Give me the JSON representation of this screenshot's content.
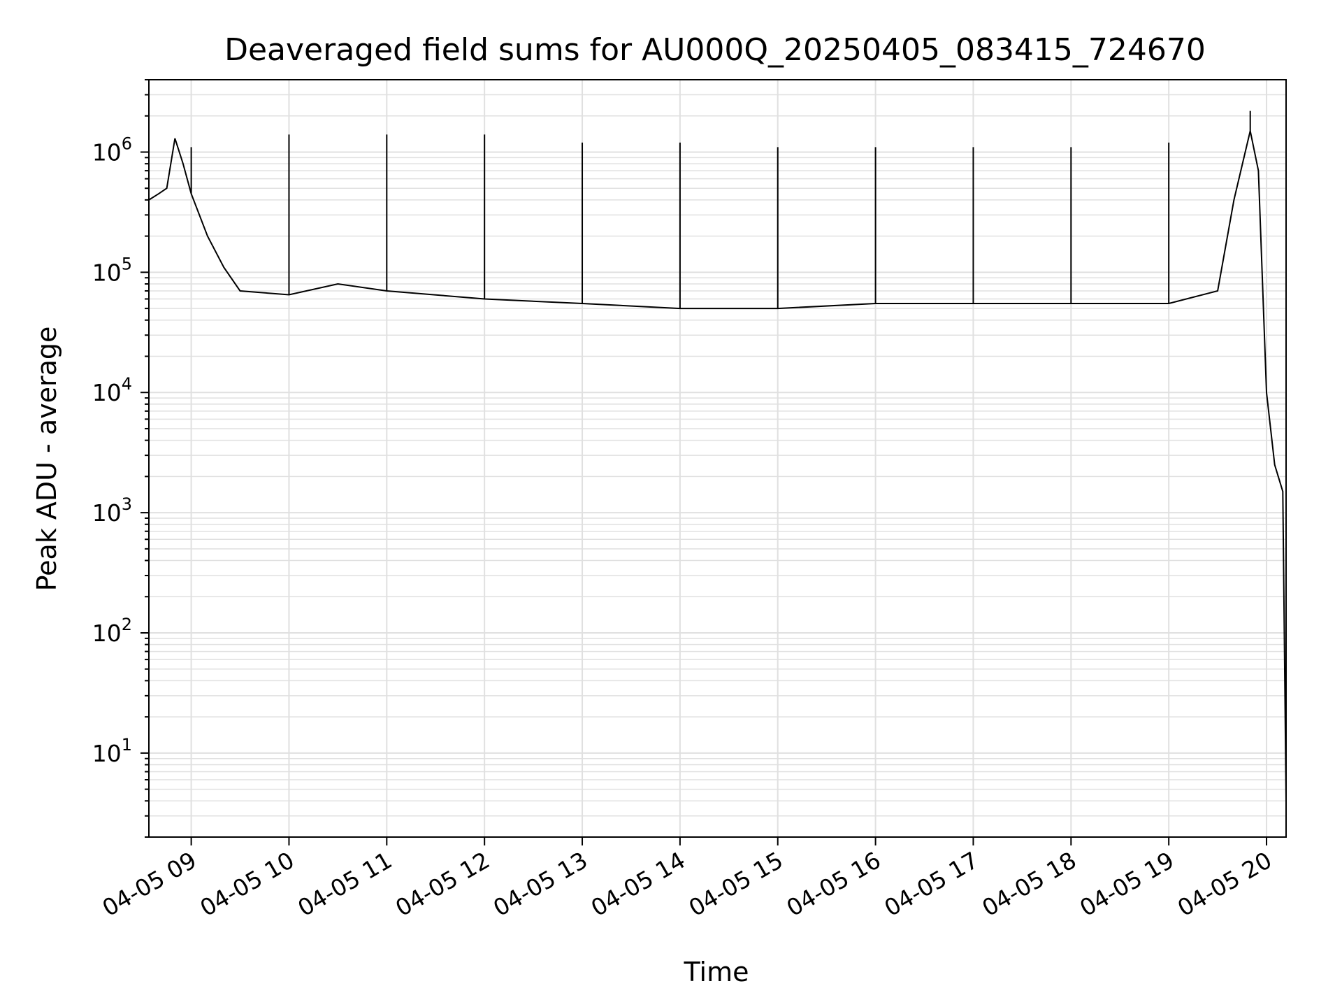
{
  "chart_data": {
    "type": "line",
    "title": "Deaveraged field sums for AU000Q_20250405_083415_724670",
    "xlabel": "Time",
    "ylabel": "Peak ADU - average",
    "y_scale": "log",
    "ylim": [
      2,
      4000000
    ],
    "xlim": [
      "04-05 08:34",
      "04-05 20:12"
    ],
    "grid": true,
    "line_color": "#000000",
    "grid_color": "#e0e0e0",
    "x_ticks": [
      {
        "t": "04-05 09:00",
        "label": "04-05 09"
      },
      {
        "t": "04-05 10:00",
        "label": "04-05 10"
      },
      {
        "t": "04-05 11:00",
        "label": "04-05 11"
      },
      {
        "t": "04-05 12:00",
        "label": "04-05 12"
      },
      {
        "t": "04-05 13:00",
        "label": "04-05 13"
      },
      {
        "t": "04-05 14:00",
        "label": "04-05 14"
      },
      {
        "t": "04-05 15:00",
        "label": "04-05 15"
      },
      {
        "t": "04-05 16:00",
        "label": "04-05 16"
      },
      {
        "t": "04-05 17:00",
        "label": "04-05 17"
      },
      {
        "t": "04-05 18:00",
        "label": "04-05 18"
      },
      {
        "t": "04-05 19:00",
        "label": "04-05 19"
      },
      {
        "t": "04-05 20:00",
        "label": "04-05 20"
      }
    ],
    "y_ticks": [
      {
        "value": 10,
        "base": "10",
        "exp": "1"
      },
      {
        "value": 100,
        "base": "10",
        "exp": "2"
      },
      {
        "value": 1000,
        "base": "10",
        "exp": "3"
      },
      {
        "value": 10000,
        "base": "10",
        "exp": "4"
      },
      {
        "value": 100000,
        "base": "10",
        "exp": "5"
      },
      {
        "value": 1000000,
        "base": "10",
        "exp": "6"
      }
    ],
    "series": [
      {
        "points": [
          [
            "04-05 08:34",
            400000
          ],
          [
            "04-05 08:40",
            450000
          ],
          [
            "04-05 08:45",
            500000
          ],
          [
            "04-05 08:50",
            1300000
          ],
          [
            "04-05 08:55",
            800000
          ],
          [
            "04-05 09:00",
            450000
          ],
          [
            "04-05 09:10",
            200000
          ],
          [
            "04-05 09:20",
            110000
          ],
          [
            "04-05 09:30",
            70000
          ],
          [
            "04-05 10:00",
            65000
          ],
          [
            "04-05 10:30",
            80000
          ],
          [
            "04-05 11:00",
            70000
          ],
          [
            "04-05 12:00",
            60000
          ],
          [
            "04-05 13:00",
            55000
          ],
          [
            "04-05 14:00",
            50000
          ],
          [
            "04-05 15:00",
            50000
          ],
          [
            "04-05 16:00",
            55000
          ],
          [
            "04-05 17:00",
            55000
          ],
          [
            "04-05 18:00",
            55000
          ],
          [
            "04-05 19:00",
            55000
          ],
          [
            "04-05 19:30",
            70000
          ],
          [
            "04-05 19:40",
            400000
          ],
          [
            "04-05 19:50",
            1500000
          ],
          [
            "04-05 19:55",
            700000
          ],
          [
            "04-05 20:00",
            10000
          ],
          [
            "04-05 20:05",
            2500
          ],
          [
            "04-05 20:10",
            1500
          ],
          [
            "04-05 20:12",
            4
          ]
        ],
        "spike_peaks": [
          [
            "04-05 09:00",
            1100000
          ],
          [
            "04-05 10:00",
            1400000
          ],
          [
            "04-05 11:00",
            1400000
          ],
          [
            "04-05 12:00",
            1400000
          ],
          [
            "04-05 13:00",
            1200000
          ],
          [
            "04-05 14:00",
            1200000
          ],
          [
            "04-05 15:00",
            1100000
          ],
          [
            "04-05 16:00",
            1100000
          ],
          [
            "04-05 17:00",
            1100000
          ],
          [
            "04-05 18:00",
            1100000
          ],
          [
            "04-05 19:00",
            1200000
          ],
          [
            "04-05 19:50",
            2200000
          ]
        ]
      }
    ]
  }
}
